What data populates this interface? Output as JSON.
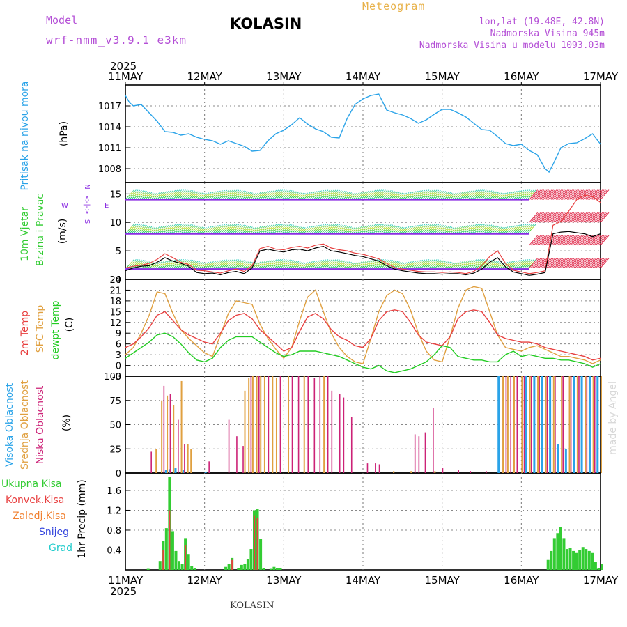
{
  "header": {
    "model_label": "Model",
    "model_name": "wrf-nmm_v3.9.1 e3km",
    "title": "KOLASIN",
    "meteogram": "Meteogram",
    "lonlat": "lon,lat (19.48E, 42.8N)",
    "elevation": "Nadmorska Visina 945m",
    "model_elevation": "Nadmorska Visina u modelu 1093.03m",
    "year": "2025"
  },
  "footer": {
    "station": "KOLASIN",
    "watermark": "made by Angel"
  },
  "colors": {
    "pressure": "#2aa3e8",
    "wind_purple": "#8a2be2",
    "temp2m": "#e84040",
    "sfc": "#e0a040",
    "dewpt": "#22cc22",
    "cloud_high": "#2aa3e8",
    "cloud_mid": "#e0a040",
    "cloud_low": "#cc2277",
    "precip": "#33cc33",
    "convective": "#e84040",
    "frozen": "#f08030",
    "snow": "#3344dd",
    "hail": "#22cccc"
  },
  "chart_data": [
    {
      "type": "line",
      "id": "pressure",
      "ylabel_left": "Pritisak na nivou mora",
      "ylabel_unit": "(hPa)",
      "x_days": [
        11.0,
        11.05,
        11.1,
        11.2,
        11.3,
        11.4,
        11.5,
        11.6,
        11.7,
        11.8,
        11.9,
        12.0,
        12.1,
        12.2,
        12.3,
        12.4,
        12.5,
        12.6,
        12.7,
        12.8,
        12.9,
        13.0,
        13.1,
        13.2,
        13.3,
        13.4,
        13.5,
        13.6,
        13.7,
        13.8,
        13.9,
        14.0,
        14.1,
        14.2,
        14.3,
        14.4,
        14.5,
        14.6,
        14.7,
        14.8,
        14.9,
        15.0,
        15.1,
        15.2,
        15.3,
        15.4,
        15.5,
        15.6,
        15.7,
        15.8,
        15.9,
        16.0,
        16.1,
        16.2,
        16.3,
        16.35,
        16.4,
        16.5,
        16.6,
        16.7,
        16.8,
        16.9,
        17.0
      ],
      "values": [
        1018.5,
        1017.5,
        1017.0,
        1017.2,
        1016.0,
        1014.8,
        1013.3,
        1013.2,
        1012.8,
        1013.0,
        1012.5,
        1012.2,
        1012.0,
        1011.5,
        1012.0,
        1011.6,
        1011.2,
        1010.5,
        1010.6,
        1012.0,
        1013.0,
        1013.5,
        1014.3,
        1015.3,
        1014.4,
        1013.7,
        1013.3,
        1012.5,
        1012.4,
        1015.2,
        1017.2,
        1018.0,
        1018.5,
        1018.7,
        1016.4,
        1016.0,
        1015.7,
        1015.2,
        1014.5,
        1015.0,
        1015.8,
        1016.5,
        1016.5,
        1016.0,
        1015.4,
        1014.5,
        1013.6,
        1013.5,
        1012.6,
        1011.6,
        1011.3,
        1011.5,
        1010.6,
        1010.0,
        1008.0,
        1007.5,
        1008.6,
        1011.0,
        1011.6,
        1011.7,
        1012.3,
        1013.0,
        1011.5
      ],
      "ylim": [
        1006,
        1020
      ],
      "yticks": [
        1008,
        1011,
        1014,
        1017
      ]
    },
    {
      "type": "line",
      "id": "wind",
      "ylabel_left": "10m Vjetar",
      "ylabel_left2": "Brzina i Pravac",
      "ylabel_unit": "(m/s)",
      "direction_legend": [
        "N",
        "S",
        "W",
        "E",
        "<-|->"
      ],
      "ylim": [
        0,
        17
      ],
      "yticks": [
        0,
        5,
        10,
        15
      ],
      "x_days": [
        11.0,
        11.1,
        11.2,
        11.3,
        11.4,
        11.5,
        11.6,
        11.7,
        11.8,
        11.9,
        12.0,
        12.1,
        12.2,
        12.3,
        12.4,
        12.5,
        12.6,
        12.7,
        12.8,
        12.9,
        13.0,
        13.1,
        13.2,
        13.3,
        13.4,
        13.5,
        13.6,
        13.7,
        13.8,
        13.9,
        14.0,
        14.1,
        14.2,
        14.3,
        14.4,
        14.5,
        14.6,
        14.7,
        14.8,
        14.9,
        15.0,
        15.1,
        15.2,
        15.3,
        15.4,
        15.5,
        15.6,
        15.7,
        15.8,
        15.9,
        16.0,
        16.1,
        16.2,
        16.3,
        16.4,
        16.5,
        16.6,
        16.7,
        16.8,
        16.9,
        17.0
      ],
      "speed": [
        1.5,
        2.0,
        2.3,
        2.4,
        3.0,
        3.8,
        3.2,
        2.8,
        2.3,
        1.2,
        1.0,
        1.1,
        0.8,
        1.2,
        1.4,
        1.0,
        2.0,
        5.0,
        5.3,
        5.0,
        4.8,
        5.2,
        5.3,
        5.0,
        5.5,
        5.8,
        5.0,
        4.8,
        4.5,
        4.2,
        4.0,
        3.6,
        3.2,
        2.4,
        1.8,
        1.5,
        1.3,
        1.1,
        1.0,
        1.0,
        0.9,
        1.0,
        1.0,
        0.8,
        1.1,
        1.8,
        3.0,
        3.8,
        2.2,
        1.3,
        1.0,
        0.7,
        0.9,
        1.2,
        8.0,
        8.3,
        8.4,
        8.2,
        8.0,
        7.5,
        8.0
      ],
      "gust": [
        2.0,
        2.3,
        2.5,
        2.8,
        3.5,
        4.5,
        3.8,
        3.0,
        2.6,
        1.6,
        1.5,
        1.3,
        1.1,
        1.5,
        1.8,
        1.4,
        2.4,
        5.4,
        5.8,
        5.3,
        5.2,
        5.6,
        5.8,
        5.5,
        6.0,
        6.2,
        5.5,
        5.2,
        5.0,
        4.6,
        4.4,
        4.0,
        3.6,
        2.8,
        2.1,
        1.8,
        1.6,
        1.4,
        1.3,
        1.3,
        1.2,
        1.3,
        1.2,
        1.0,
        1.4,
        2.4,
        4.0,
        5.0,
        2.8,
        1.6,
        1.3,
        1.0,
        1.2,
        1.5,
        9.5,
        10.2,
        12.0,
        14.0,
        14.8,
        14.5,
        13.5
      ],
      "rows": [
        {
          "name": "wind_upper",
          "level": 14.0,
          "start": 11.0,
          "end": 16.1
        },
        {
          "name": "wind_mid",
          "level": 8.0,
          "start": 11.0,
          "end": 16.1
        },
        {
          "name": "wind_low",
          "level": 1.8,
          "start": 11.0,
          "end": 16.1
        }
      ]
    },
    {
      "type": "line",
      "id": "temperature",
      "ylabel_left": "2m Temp",
      "ylabel_left2": "SFC Temp",
      "ylabel_left3": "dewpt Temp",
      "ylabel_unit": "(C)",
      "ylim": [
        -3,
        24
      ],
      "yticks": [
        -3,
        0,
        3,
        6,
        9,
        12,
        15,
        18,
        21,
        24
      ],
      "x_days": [
        11.0,
        11.1,
        11.2,
        11.3,
        11.4,
        11.5,
        11.6,
        11.7,
        11.8,
        11.9,
        12.0,
        12.1,
        12.2,
        12.3,
        12.4,
        12.5,
        12.6,
        12.7,
        12.8,
        12.9,
        13.0,
        13.1,
        13.2,
        13.3,
        13.4,
        13.5,
        13.6,
        13.7,
        13.8,
        13.9,
        14.0,
        14.1,
        14.2,
        14.3,
        14.4,
        14.5,
        14.6,
        14.7,
        14.8,
        14.9,
        15.0,
        15.1,
        15.2,
        15.3,
        15.4,
        15.5,
        15.6,
        15.7,
        15.8,
        15.9,
        16.0,
        16.1,
        16.2,
        16.3,
        16.4,
        16.5,
        16.6,
        16.7,
        16.8,
        16.9,
        17.0
      ],
      "series": [
        {
          "name": "SFC Temp",
          "values": [
            3.0,
            5.0,
            9.0,
            14.0,
            20.5,
            20.0,
            14.5,
            10.0,
            7.5,
            5.5,
            3.5,
            2.5,
            8.5,
            14.5,
            18.0,
            17.5,
            17.0,
            11.5,
            7.5,
            4.5,
            2.0,
            5.0,
            12.5,
            19.0,
            21.0,
            15.0,
            9.0,
            5.0,
            2.5,
            1.0,
            0.5,
            7.5,
            15.0,
            19.5,
            21.0,
            20.0,
            15.5,
            9.0,
            4.0,
            1.5,
            1.0,
            8.0,
            16.0,
            21.0,
            22.0,
            21.5,
            15.0,
            8.5,
            5.0,
            4.5,
            4.0,
            5.0,
            5.5,
            4.5,
            3.5,
            2.5,
            2.5,
            2.0,
            1.5,
            0.5,
            1.5
          ]
        },
        {
          "name": "2m Temp",
          "values": [
            5.0,
            6.0,
            8.0,
            10.5,
            14.0,
            15.0,
            12.5,
            10.0,
            8.5,
            7.5,
            6.5,
            6.0,
            9.0,
            12.5,
            14.0,
            14.5,
            13.0,
            10.0,
            8.0,
            6.0,
            4.0,
            5.0,
            9.5,
            13.5,
            14.5,
            13.0,
            10.0,
            8.0,
            7.0,
            5.5,
            5.0,
            7.5,
            12.5,
            15.0,
            15.5,
            15.0,
            12.0,
            8.5,
            6.5,
            6.0,
            5.5,
            8.0,
            13.0,
            15.0,
            15.5,
            15.0,
            12.0,
            8.5,
            7.5,
            7.0,
            6.5,
            6.5,
            6.0,
            5.0,
            4.5,
            4.0,
            3.5,
            3.0,
            2.5,
            1.5,
            2.0
          ]
        },
        {
          "name": "dewpt Temp",
          "values": [
            2.0,
            3.5,
            5.0,
            6.5,
            8.5,
            9.0,
            8.0,
            6.0,
            3.5,
            1.5,
            1.0,
            2.0,
            5.0,
            7.0,
            8.0,
            8.0,
            8.0,
            6.5,
            5.0,
            3.5,
            2.5,
            3.0,
            4.0,
            4.0,
            4.0,
            3.5,
            3.0,
            2.5,
            1.5,
            0.5,
            -0.5,
            -1.0,
            0.0,
            -1.5,
            -2.0,
            -1.5,
            -1.0,
            0.0,
            1.0,
            3.0,
            5.5,
            5.0,
            2.5,
            2.0,
            1.5,
            1.5,
            1.0,
            1.0,
            3.0,
            4.0,
            2.5,
            3.0,
            2.5,
            2.0,
            2.0,
            1.5,
            1.5,
            1.0,
            0.5,
            -0.5,
            0.5
          ]
        }
      ]
    },
    {
      "type": "bar",
      "id": "cloud",
      "ylabel_left": "Visoka Oblacnost",
      "ylabel_left2": "Srednja Oblacnost",
      "ylabel_left3": "Niska Oblacnost",
      "ylabel_unit": "(%)",
      "ylim": [
        0,
        100
      ],
      "yticks": [
        0,
        25,
        50,
        75,
        100
      ],
      "high": [
        [
          11.5,
          3
        ],
        [
          11.55,
          4
        ],
        [
          11.62,
          5
        ],
        [
          11.72,
          3
        ],
        [
          12.0,
          1
        ],
        [
          15.7,
          100
        ],
        [
          16.05,
          100
        ],
        [
          16.15,
          100
        ],
        [
          16.25,
          100
        ],
        [
          16.35,
          100
        ],
        [
          16.45,
          30
        ],
        [
          16.55,
          25
        ],
        [
          16.65,
          100
        ],
        [
          16.75,
          100
        ],
        [
          16.85,
          100
        ],
        [
          16.95,
          100
        ]
      ],
      "mid": [
        [
          11.38,
          25
        ],
        [
          11.45,
          75
        ],
        [
          11.52,
          80
        ],
        [
          11.6,
          70
        ],
        [
          11.7,
          95
        ],
        [
          11.78,
          30
        ],
        [
          11.82,
          25
        ],
        [
          12.5,
          85
        ],
        [
          12.55,
          98
        ],
        [
          12.6,
          100
        ],
        [
          12.65,
          100
        ],
        [
          12.7,
          100
        ],
        [
          12.75,
          100
        ],
        [
          12.85,
          100
        ],
        [
          12.9,
          98
        ],
        [
          13.05,
          100
        ],
        [
          13.25,
          100
        ],
        [
          13.5,
          100
        ],
        [
          14.38,
          2
        ],
        [
          14.6,
          2
        ],
        [
          14.9,
          2
        ],
        [
          15.76,
          100
        ],
        [
          15.82,
          100
        ],
        [
          15.9,
          100
        ],
        [
          16.0,
          100
        ],
        [
          16.1,
          100
        ],
        [
          16.2,
          100
        ],
        [
          16.3,
          100
        ],
        [
          16.4,
          100
        ],
        [
          16.5,
          100
        ],
        [
          16.6,
          100
        ],
        [
          16.7,
          100
        ],
        [
          16.8,
          100
        ],
        [
          16.9,
          100
        ],
        [
          17.0,
          100
        ]
      ],
      "low": [
        [
          11.32,
          22
        ],
        [
          11.48,
          90
        ],
        [
          11.56,
          82
        ],
        [
          11.66,
          55
        ],
        [
          11.74,
          30
        ],
        [
          12.05,
          12
        ],
        [
          12.3,
          55
        ],
        [
          12.4,
          38
        ],
        [
          12.48,
          28
        ],
        [
          12.58,
          100
        ],
        [
          12.68,
          100
        ],
        [
          12.8,
          100
        ],
        [
          12.95,
          100
        ],
        [
          13.1,
          100
        ],
        [
          13.18,
          100
        ],
        [
          13.3,
          100
        ],
        [
          13.38,
          98
        ],
        [
          13.45,
          100
        ],
        [
          13.55,
          100
        ],
        [
          13.6,
          85
        ],
        [
          13.7,
          82
        ],
        [
          13.75,
          78
        ],
        [
          13.85,
          58
        ],
        [
          14.05,
          10
        ],
        [
          14.15,
          10
        ],
        [
          14.2,
          9
        ],
        [
          14.65,
          40
        ],
        [
          14.7,
          38
        ],
        [
          14.78,
          42
        ],
        [
          14.88,
          67
        ],
        [
          15.0,
          5
        ],
        [
          15.2,
          3
        ],
        [
          15.35,
          2
        ],
        [
          15.55,
          2
        ],
        [
          15.8,
          100
        ],
        [
          15.86,
          100
        ],
        [
          15.94,
          100
        ],
        [
          16.03,
          100
        ],
        [
          16.12,
          100
        ],
        [
          16.22,
          100
        ],
        [
          16.32,
          100
        ],
        [
          16.42,
          100
        ],
        [
          16.52,
          100
        ],
        [
          16.62,
          100
        ],
        [
          16.72,
          100
        ],
        [
          16.82,
          100
        ],
        [
          16.92,
          100
        ]
      ]
    },
    {
      "type": "bar",
      "id": "precip",
      "legend": [
        "Ukupna Kisa",
        "Konvek.Kisa",
        "Zaledj.Kisa",
        "Snijeg",
        "Grad"
      ],
      "ylabel_unit": "1hr Precip (mm)",
      "ylim": [
        0,
        1.95
      ],
      "yticks": [
        0.4,
        0.8,
        1.2,
        1.6
      ],
      "xticks": [
        "11MAY",
        "12MAY",
        "13MAY",
        "14MAY",
        "15MAY",
        "16MAY",
        "17MAY"
      ],
      "total": [
        [
          11.27,
          0.02
        ],
        [
          11.42,
          0.18
        ],
        [
          11.46,
          0.58
        ],
        [
          11.5,
          0.84
        ],
        [
          11.54,
          1.88
        ],
        [
          11.58,
          0.78
        ],
        [
          11.62,
          0.38
        ],
        [
          11.66,
          0.18
        ],
        [
          11.7,
          0.12
        ],
        [
          11.74,
          0.64
        ],
        [
          11.78,
          0.32
        ],
        [
          11.82,
          0.08
        ],
        [
          11.86,
          0.03
        ],
        [
          12.25,
          0.06
        ],
        [
          12.29,
          0.12
        ],
        [
          12.33,
          0.24
        ],
        [
          12.41,
          0.04
        ],
        [
          12.45,
          0.1
        ],
        [
          12.49,
          0.12
        ],
        [
          12.53,
          0.22
        ],
        [
          12.57,
          0.42
        ],
        [
          12.61,
          1.2
        ],
        [
          12.65,
          1.22
        ],
        [
          12.69,
          0.62
        ],
        [
          12.73,
          0.04
        ],
        [
          12.82,
          0.02
        ],
        [
          12.86,
          0.06
        ],
        [
          12.9,
          0.04
        ],
        [
          12.94,
          0.04
        ],
        [
          16.32,
          0.2
        ],
        [
          16.36,
          0.38
        ],
        [
          16.4,
          0.64
        ],
        [
          16.44,
          0.74
        ],
        [
          16.48,
          0.86
        ],
        [
          16.52,
          0.64
        ],
        [
          16.56,
          0.42
        ],
        [
          16.6,
          0.44
        ],
        [
          16.64,
          0.38
        ],
        [
          16.68,
          0.34
        ],
        [
          16.72,
          0.4
        ],
        [
          16.76,
          0.46
        ],
        [
          16.8,
          0.42
        ],
        [
          16.84,
          0.38
        ],
        [
          16.88,
          0.34
        ],
        [
          16.92,
          0.16
        ],
        [
          16.96,
          0.04
        ],
        [
          17.0,
          0.12
        ]
      ],
      "convective": [
        [
          11.46,
          0.4
        ],
        [
          11.54,
          1.2
        ],
        [
          11.74,
          0.5
        ],
        [
          12.33,
          0.2
        ],
        [
          12.61,
          1.1
        ],
        [
          12.65,
          1.05
        ]
      ]
    }
  ]
}
